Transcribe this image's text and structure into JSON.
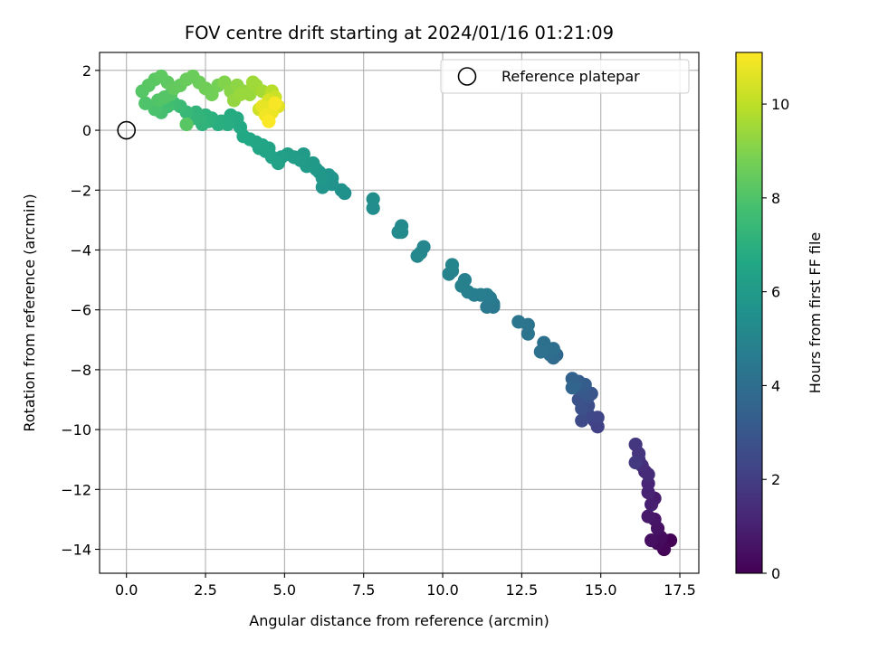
{
  "chart_data": {
    "type": "scatter",
    "title": "FOV centre drift starting at 2024/01/16 01:21:09",
    "xlabel": "Angular distance from reference (arcmin)",
    "ylabel": "Rotation from reference (arcmin)",
    "xlim": [
      -0.85,
      18.1
    ],
    "ylim": [
      -14.8,
      2.6
    ],
    "xticks": [
      0.0,
      2.5,
      5.0,
      7.5,
      10.0,
      12.5,
      15.0,
      17.5
    ],
    "xtick_labels": [
      "0.0",
      "2.5",
      "5.0",
      "7.5",
      "10.0",
      "12.5",
      "15.0",
      "17.5"
    ],
    "yticks": [
      2,
      0,
      -2,
      -4,
      -6,
      -8,
      -10,
      -12,
      -14
    ],
    "ytick_labels": [
      "2",
      "0",
      "−2",
      "−4",
      "−6",
      "−8",
      "−10",
      "−12",
      "−14"
    ],
    "grid": true,
    "colorbar": {
      "label": "Hours from first FF file",
      "colormap": "viridis",
      "range": [
        0,
        11.1
      ],
      "ticks": [
        0,
        2,
        4,
        6,
        8,
        10
      ],
      "tick_labels": [
        "0",
        "2",
        "4",
        "6",
        "8",
        "10"
      ]
    },
    "legend": {
      "placement": "top-right",
      "entries": [
        {
          "label": "Reference platepar",
          "marker": "open-circle",
          "x": 0.0,
          "y": 0.0
        }
      ]
    },
    "points": [
      [
        17.2,
        -13.7,
        0.05
      ],
      [
        17.0,
        -14.0,
        0.15
      ],
      [
        16.8,
        -13.8,
        0.25
      ],
      [
        16.9,
        -13.6,
        0.35
      ],
      [
        16.6,
        -13.7,
        0.45
      ],
      [
        16.8,
        -13.3,
        0.55
      ],
      [
        16.7,
        -13.0,
        0.65
      ],
      [
        16.5,
        -12.9,
        0.75
      ],
      [
        16.7,
        -12.3,
        0.85
      ],
      [
        16.6,
        -12.5,
        0.95
      ],
      [
        16.5,
        -12.1,
        1.05
      ],
      [
        16.5,
        -11.8,
        1.15
      ],
      [
        16.4,
        -11.4,
        1.25
      ],
      [
        16.5,
        -11.5,
        1.35
      ],
      [
        16.3,
        -11.2,
        1.45
      ],
      [
        16.2,
        -11.0,
        1.55
      ],
      [
        16.2,
        -10.8,
        1.65
      ],
      [
        16.1,
        -10.5,
        1.75
      ],
      [
        16.1,
        -11.1,
        1.85
      ],
      [
        14.9,
        -9.9,
        2.1
      ],
      [
        14.8,
        -9.7,
        2.2
      ],
      [
        14.9,
        -9.6,
        2.3
      ],
      [
        14.6,
        -9.5,
        2.4
      ],
      [
        14.4,
        -9.7,
        2.5
      ],
      [
        14.6,
        -9.2,
        2.6
      ],
      [
        14.4,
        -9.3,
        2.7
      ],
      [
        14.3,
        -9.0,
        2.8
      ],
      [
        14.6,
        -8.9,
        2.9
      ],
      [
        14.7,
        -8.8,
        3.0
      ],
      [
        14.4,
        -8.7,
        3.1
      ],
      [
        14.5,
        -8.5,
        3.2
      ],
      [
        14.3,
        -8.4,
        3.3
      ],
      [
        14.2,
        -8.5,
        3.4
      ],
      [
        14.1,
        -8.3,
        3.5
      ],
      [
        14.1,
        -8.6,
        3.6
      ],
      [
        13.6,
        -7.5,
        3.7
      ],
      [
        13.5,
        -7.6,
        3.8
      ],
      [
        13.4,
        -7.5,
        3.9
      ],
      [
        13.5,
        -7.3,
        4.0
      ],
      [
        13.3,
        -7.3,
        4.05
      ],
      [
        13.2,
        -7.1,
        4.1
      ],
      [
        13.1,
        -7.4,
        4.15
      ],
      [
        12.7,
        -6.8,
        4.2
      ],
      [
        12.7,
        -6.5,
        4.25
      ],
      [
        12.4,
        -6.4,
        4.3
      ],
      [
        11.6,
        -5.9,
        4.4
      ],
      [
        11.6,
        -5.8,
        4.45
      ],
      [
        11.4,
        -5.9,
        4.5
      ],
      [
        11.5,
        -5.6,
        4.55
      ],
      [
        11.4,
        -5.5,
        4.6
      ],
      [
        11.2,
        -5.5,
        4.65
      ],
      [
        11.0,
        -5.5,
        4.7
      ],
      [
        10.8,
        -5.4,
        4.75
      ],
      [
        10.7,
        -5.0,
        4.8
      ],
      [
        10.6,
        -5.2,
        4.85
      ],
      [
        10.3,
        -4.7,
        4.9
      ],
      [
        10.2,
        -4.8,
        4.95
      ],
      [
        10.3,
        -4.5,
        5.0
      ],
      [
        9.4,
        -3.9,
        5.05
      ],
      [
        9.3,
        -4.1,
        5.1
      ],
      [
        9.2,
        -4.2,
        5.15
      ],
      [
        8.7,
        -3.2,
        5.2
      ],
      [
        8.6,
        -3.4,
        5.25
      ],
      [
        8.7,
        -3.4,
        5.3
      ],
      [
        7.8,
        -2.6,
        5.35
      ],
      [
        7.8,
        -2.3,
        5.4
      ],
      [
        6.9,
        -2.1,
        5.5
      ],
      [
        6.8,
        -2.0,
        5.55
      ],
      [
        6.5,
        -1.8,
        5.6
      ],
      [
        6.5,
        -1.6,
        5.65
      ],
      [
        6.4,
        -1.5,
        5.7
      ],
      [
        6.2,
        -1.9,
        5.75
      ],
      [
        6.2,
        -1.6,
        5.8
      ],
      [
        6.1,
        -1.4,
        5.85
      ],
      [
        6.0,
        -1.3,
        5.9
      ],
      [
        5.9,
        -1.1,
        5.95
      ],
      [
        5.7,
        -1.2,
        6.0
      ],
      [
        5.6,
        -0.8,
        6.05
      ],
      [
        5.5,
        -1.0,
        6.1
      ],
      [
        5.3,
        -0.9,
        6.15
      ],
      [
        5.1,
        -0.8,
        6.2
      ],
      [
        4.9,
        -0.9,
        6.25
      ],
      [
        4.8,
        -1.1,
        6.3
      ],
      [
        4.6,
        -0.9,
        6.35
      ],
      [
        4.5,
        -0.6,
        6.4
      ],
      [
        4.4,
        -0.7,
        6.45
      ],
      [
        4.2,
        -0.6,
        6.5
      ],
      [
        4.1,
        -0.4,
        6.55
      ],
      [
        3.9,
        -0.3,
        6.6
      ],
      [
        3.7,
        -0.2,
        6.65
      ],
      [
        3.6,
        0.1,
        6.7
      ],
      [
        3.4,
        0.3,
        6.75
      ],
      [
        3.3,
        0.5,
        6.8
      ],
      [
        3.2,
        0.2,
        6.85
      ],
      [
        3.0,
        0.3,
        6.9
      ],
      [
        2.9,
        0.2,
        6.95
      ],
      [
        2.7,
        0.4,
        7.0
      ],
      [
        2.6,
        0.3,
        7.05
      ],
      [
        2.5,
        0.5,
        7.1
      ],
      [
        2.4,
        0.2,
        7.15
      ],
      [
        2.2,
        0.6,
        7.2
      ],
      [
        2.1,
        0.4,
        7.25
      ],
      [
        4.3,
        -0.5,
        6.5
      ],
      [
        3.5,
        0.4,
        6.75
      ],
      [
        2.3,
        0.4,
        7.2
      ],
      [
        1.9,
        0.6,
        7.4
      ],
      [
        1.7,
        0.8,
        7.5
      ],
      [
        1.5,
        0.9,
        7.6
      ],
      [
        1.3,
        0.8,
        7.7
      ],
      [
        1.1,
        0.6,
        7.8
      ],
      [
        0.9,
        0.7,
        7.9
      ],
      [
        0.6,
        0.9,
        8.0
      ],
      [
        1.0,
        1.0,
        8.05
      ],
      [
        1.4,
        1.2,
        8.1
      ],
      [
        0.5,
        1.3,
        8.15
      ],
      [
        0.7,
        1.5,
        8.2
      ],
      [
        0.9,
        1.7,
        8.25
      ],
      [
        1.1,
        1.8,
        8.3
      ],
      [
        1.3,
        1.6,
        8.35
      ],
      [
        1.5,
        1.4,
        8.4
      ],
      [
        1.7,
        1.5,
        8.45
      ],
      [
        1.9,
        1.7,
        8.5
      ],
      [
        2.1,
        1.8,
        8.55
      ],
      [
        2.3,
        1.6,
        8.6
      ],
      [
        2.5,
        1.4,
        8.65
      ],
      [
        2.7,
        1.2,
        8.7
      ],
      [
        2.9,
        1.5,
        8.75
      ],
      [
        1.9,
        0.2,
        8.2
      ],
      [
        1.2,
        1.1,
        8.1
      ],
      [
        3.1,
        1.6,
        9.0
      ],
      [
        3.3,
        1.3,
        9.1
      ],
      [
        3.5,
        1.5,
        9.2
      ],
      [
        3.7,
        1.3,
        9.3
      ],
      [
        3.9,
        1.2,
        9.4
      ],
      [
        4.1,
        1.5,
        9.5
      ],
      [
        4.3,
        1.3,
        9.6
      ],
      [
        3.4,
        1.0,
        9.3
      ],
      [
        3.6,
        1.2,
        9.4
      ],
      [
        4.0,
        1.6,
        9.5
      ],
      [
        4.6,
        1.3,
        9.9
      ],
      [
        4.7,
        1.1,
        10.2
      ],
      [
        4.5,
        1.0,
        10.4
      ],
      [
        4.8,
        0.8,
        10.6
      ],
      [
        4.6,
        0.6,
        10.8
      ],
      [
        4.4,
        0.5,
        10.9
      ],
      [
        4.7,
        0.9,
        11.0
      ],
      [
        4.5,
        0.3,
        11.05
      ],
      [
        4.3,
        0.8,
        10.7
      ],
      [
        4.2,
        0.7,
        10.3
      ]
    ]
  }
}
